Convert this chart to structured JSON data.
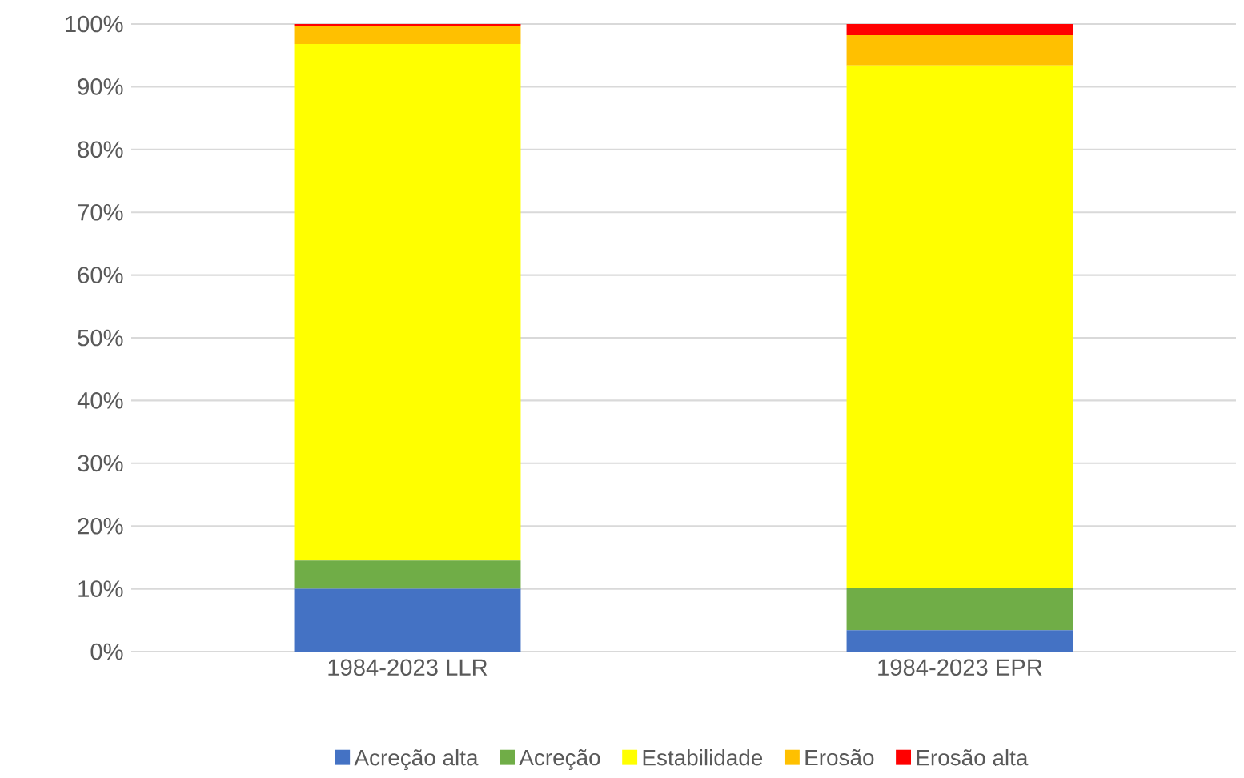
{
  "chart_data": {
    "type": "bar",
    "stacked": true,
    "categories": [
      "1984-2023 LLR",
      "1984-2023 EPR"
    ],
    "series": [
      {
        "name": "Acreção alta",
        "color": "#4472c4",
        "values": [
          10,
          3.4
        ]
      },
      {
        "name": "Acreção",
        "color": "#70ad47",
        "values": [
          4.5,
          6.7
        ]
      },
      {
        "name": "Estabilidade",
        "color": "#ffff00",
        "values": [
          82.3,
          83.3
        ]
      },
      {
        "name": "Erosão",
        "color": "#ffc000",
        "values": [
          2.9,
          4.8
        ]
      },
      {
        "name": "Erosão alta",
        "color": "#ff0000",
        "values": [
          0.3,
          1.8
        ]
      }
    ],
    "ylim": [
      0,
      100
    ],
    "yticks": [
      {
        "value": 0,
        "label": "0%"
      },
      {
        "value": 10,
        "label": "10%"
      },
      {
        "value": 20,
        "label": "20%"
      },
      {
        "value": 30,
        "label": "30%"
      },
      {
        "value": 40,
        "label": "40%"
      },
      {
        "value": 50,
        "label": "50%"
      },
      {
        "value": 60,
        "label": "60%"
      },
      {
        "value": 70,
        "label": "70%"
      },
      {
        "value": 80,
        "label": "80%"
      },
      {
        "value": 90,
        "label": "90%"
      },
      {
        "value": 100,
        "label": "100%"
      }
    ],
    "grid": "y",
    "legend": "bottom"
  }
}
